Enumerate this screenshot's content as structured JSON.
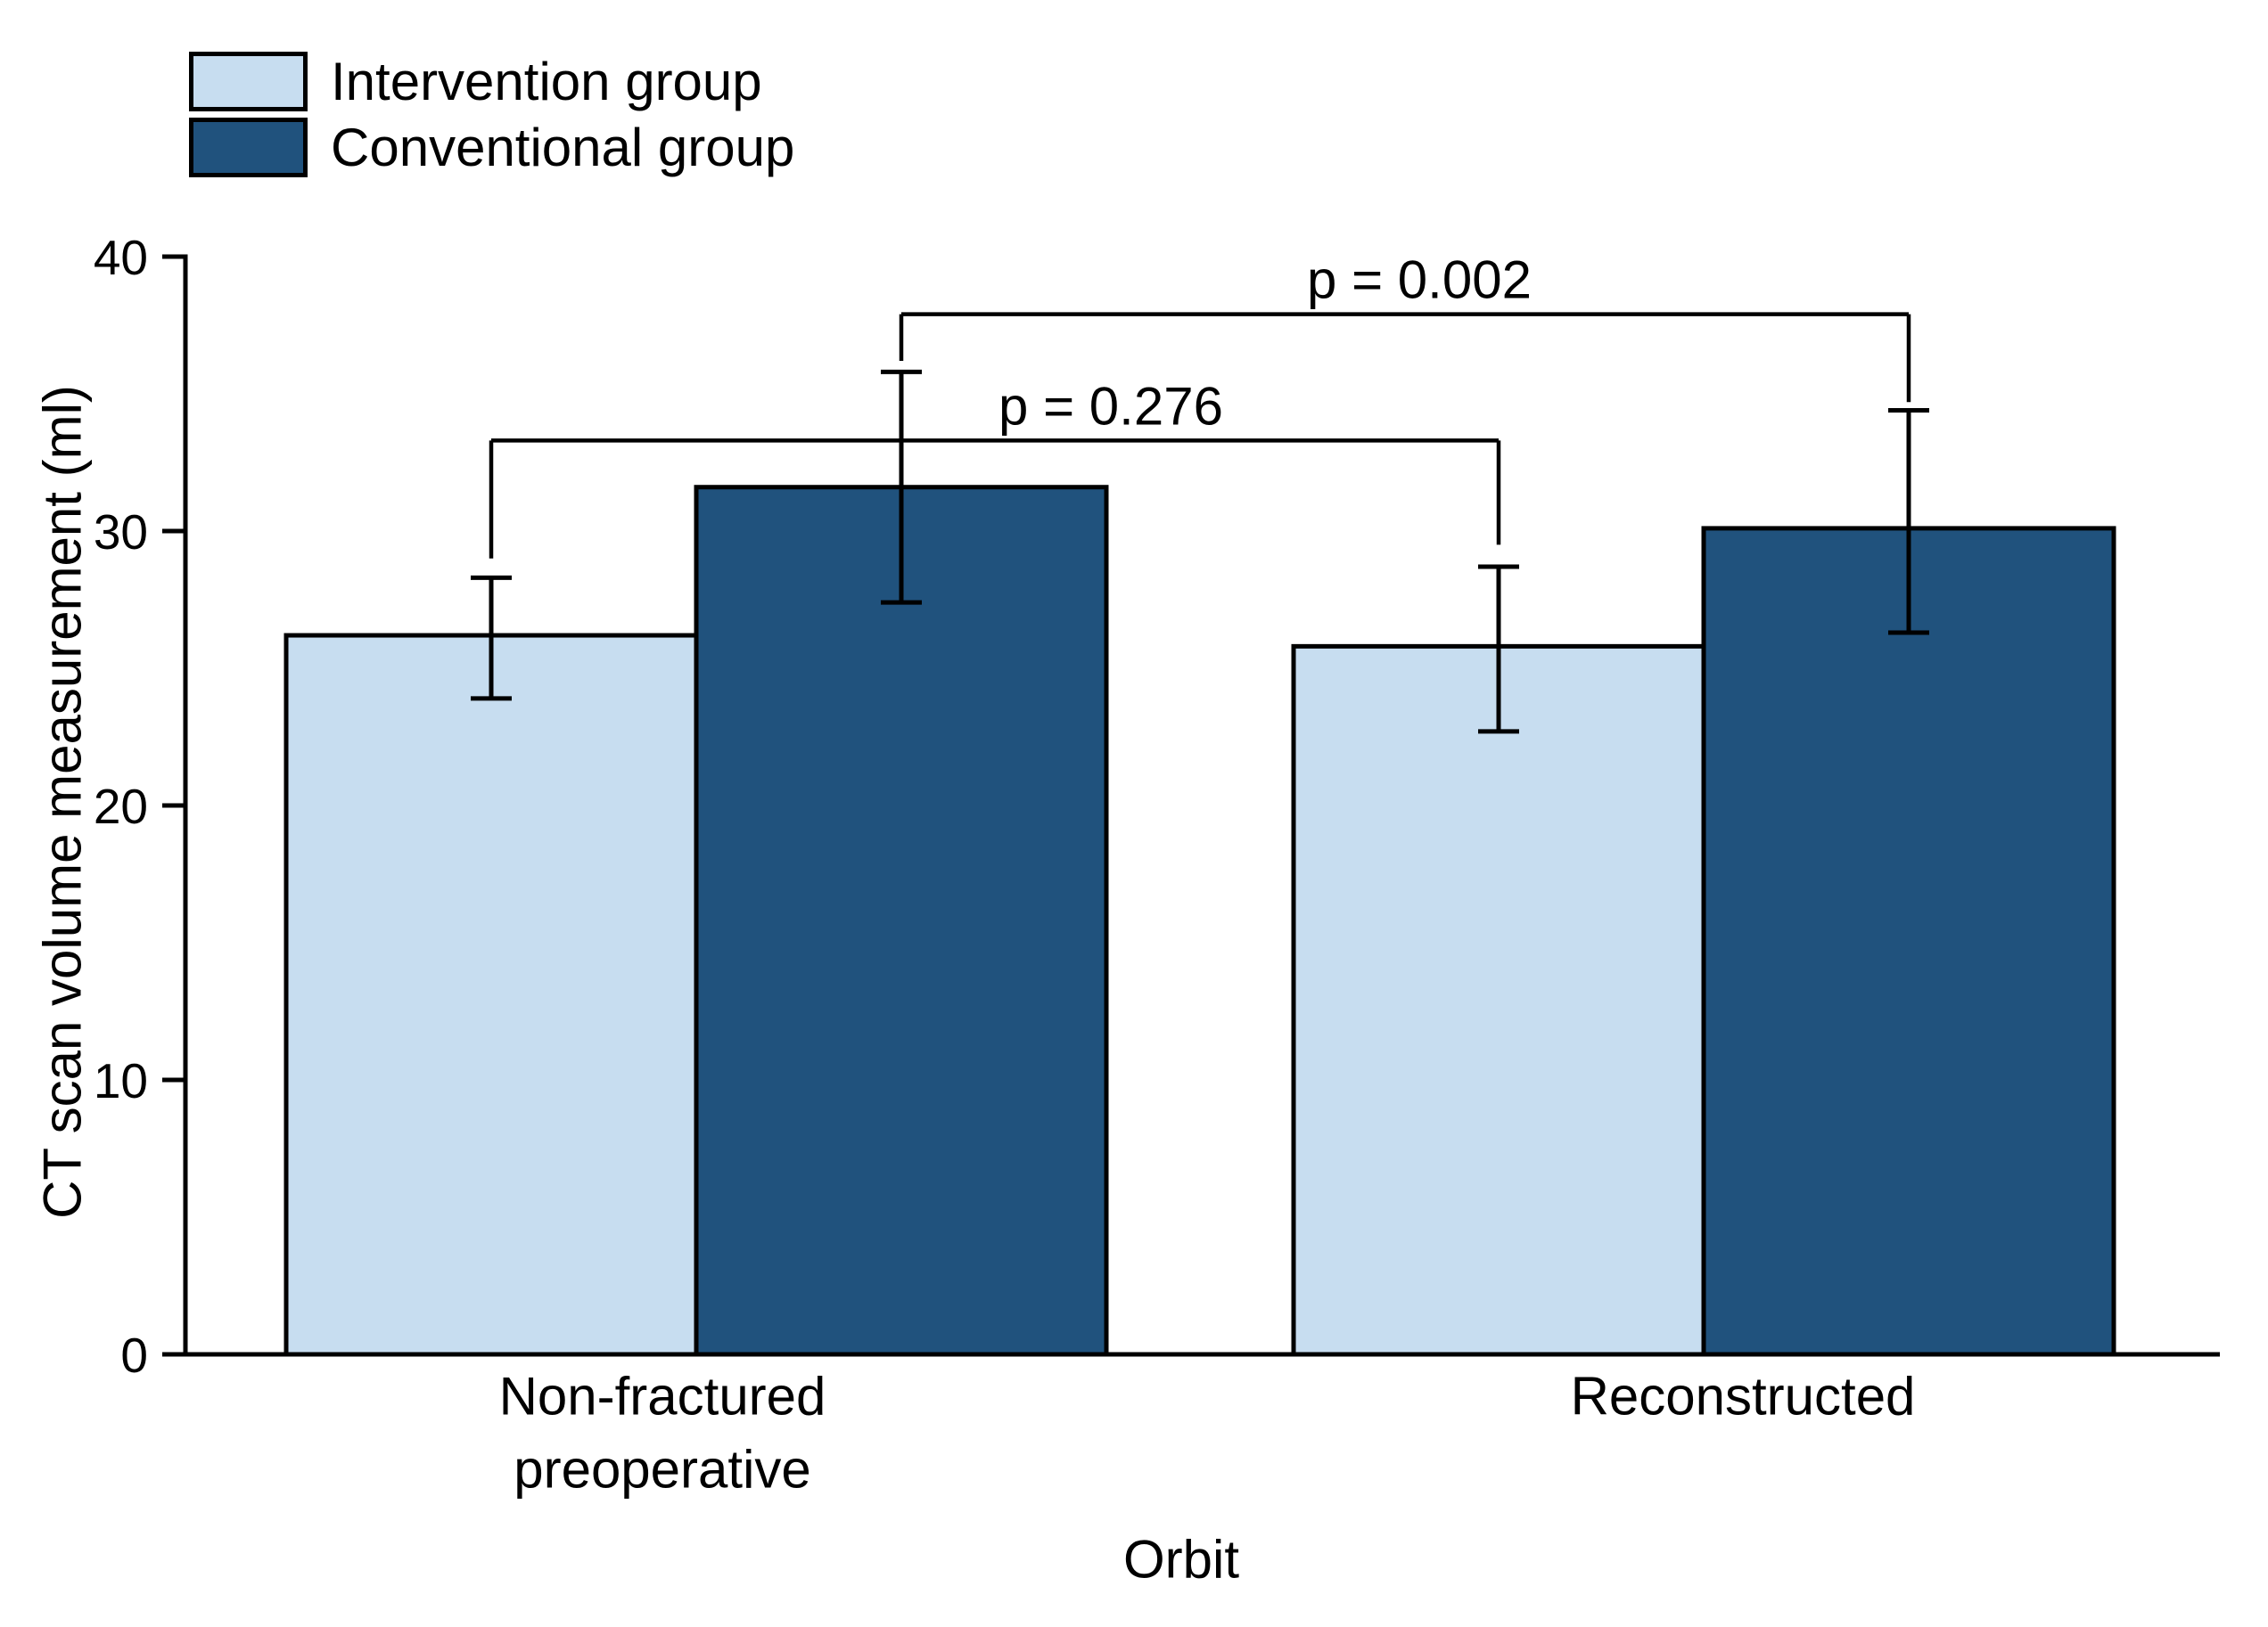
{
  "figure": {
    "background": "#ffffff",
    "text_color": "#000000"
  },
  "chart_data": {
    "type": "bar",
    "title": "",
    "xlabel": "Orbit",
    "ylabel": "CT scan volume measurement (ml)",
    "ylim": [
      0,
      40
    ],
    "yticks": [
      0,
      10,
      20,
      30,
      40
    ],
    "grid": false,
    "legend_position": "top-left",
    "categories": [
      "Non-fractured preoperative",
      "Reconstructed"
    ],
    "category_lines": [
      [
        "Non-fractured",
        "preoperative"
      ],
      [
        "Reconstructed"
      ]
    ],
    "bar_edge_color": "#000000",
    "error_bar_color": "#000000",
    "series": [
      {
        "key": "intervention",
        "name": "Intervention group",
        "color": "#C7DDF0",
        "values": [
          26.2,
          25.8
        ],
        "err_low": [
          23.9,
          22.7
        ],
        "err_high": [
          28.3,
          28.7
        ]
      },
      {
        "key": "conventional",
        "name": "Conventional group",
        "color": "#20527D",
        "values": [
          31.6,
          30.1
        ],
        "err_low": [
          27.4,
          26.3
        ],
        "err_high": [
          35.8,
          34.4
        ]
      }
    ],
    "annotations": [
      {
        "label": "p = 0.276",
        "series": 0,
        "bar_y": 33.3,
        "left_leg_bottom": 29.0,
        "right_leg_bottom": 29.5
      },
      {
        "label": "p = 0.002",
        "series": 1,
        "bar_y": 37.9,
        "left_leg_bottom": 36.2,
        "right_leg_bottom": 34.7
      }
    ]
  }
}
